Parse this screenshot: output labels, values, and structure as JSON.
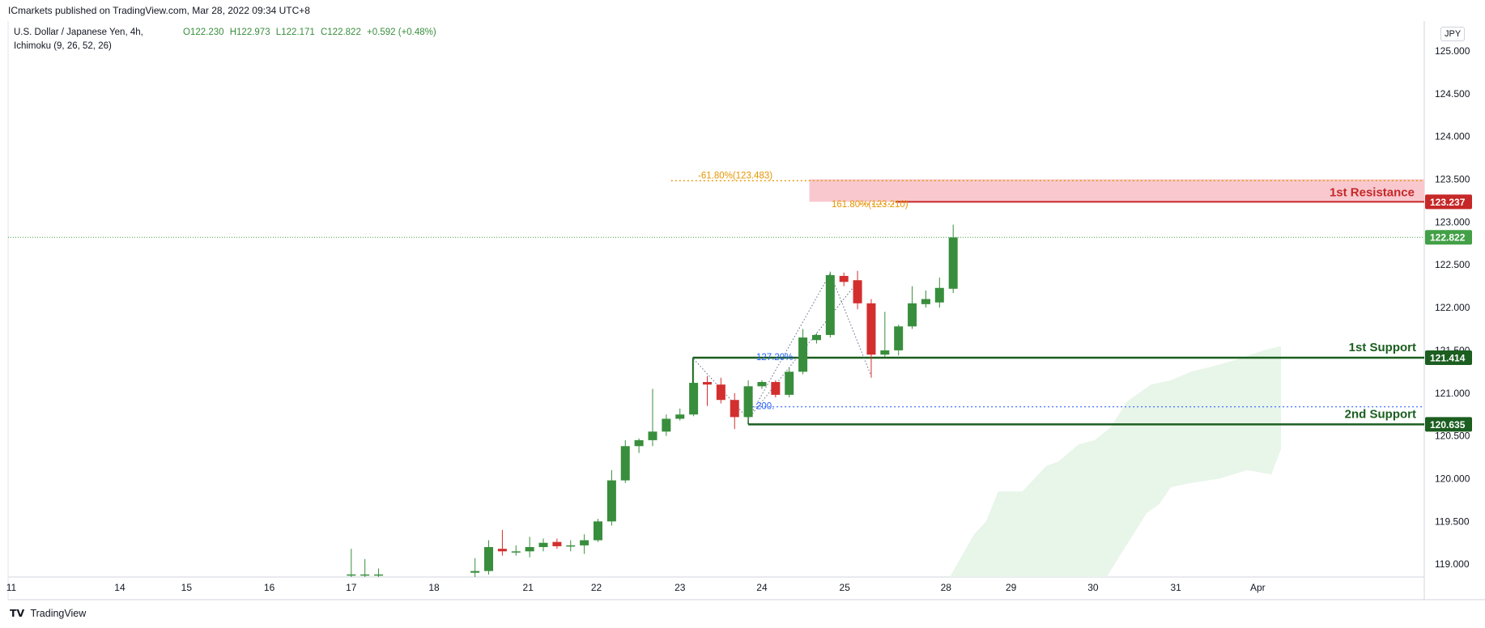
{
  "header": {
    "publisher": "ICmarkets published on TradingView.com, Mar 28, 2022 09:34 UTC+8"
  },
  "legend": {
    "symbol": "U.S. Dollar / Japanese Yen, 4h,",
    "indicator": "Ichimoku (9, 26, 52, 26)",
    "open": "O122.230",
    "high": "H122.973",
    "low": "L122.171",
    "close": "C122.822",
    "change": "+0.592 (+0.48%)"
  },
  "currency_badge": "JPY",
  "footer": {
    "brand": "TradingView"
  },
  "colors": {
    "up": "#388e3c",
    "down": "#d32f2f",
    "support": "#1b5e20",
    "resistance": "#c62828",
    "resistance_zone": "#f9c8cf",
    "cloud": "#e8f5e9",
    "fib_orange": "#e69500",
    "fib_blue": "#2962ff",
    "last_price": "#43a047"
  },
  "chart_data": {
    "type": "candlestick",
    "symbol": "U.S. Dollar / Japanese Yen",
    "timeframe": "4h",
    "ylim": [
      118.85,
      125.35
    ],
    "y_ticks": [
      "119.000",
      "119.500",
      "120.000",
      "120.500",
      "121.000",
      "121.500",
      "122.000",
      "122.500",
      "123.000",
      "123.500",
      "124.000",
      "124.500"
    ],
    "x_ticks": [
      {
        "label": "11",
        "t": 0.2
      },
      {
        "label": "14",
        "t": 13.7
      },
      {
        "label": "15",
        "t": 22.0
      },
      {
        "label": "16",
        "t": 32.3
      },
      {
        "label": "17",
        "t": 42.5
      },
      {
        "label": "18",
        "t": 52.8
      },
      {
        "label": "21",
        "t": 64.5
      },
      {
        "label": "22",
        "t": 73.0
      },
      {
        "label": "23",
        "t": 83.4
      },
      {
        "label": "24",
        "t": 93.6
      },
      {
        "label": "25",
        "t": 103.9
      },
      {
        "label": "28",
        "t": 116.5
      },
      {
        "label": "29",
        "t": 124.6
      },
      {
        "label": "30",
        "t": 134.8
      },
      {
        "label": "31",
        "t": 145.1
      },
      {
        "label": "Apr",
        "t": 155.3
      }
    ],
    "candles": [
      {
        "t": 42.5,
        "o": 118.88,
        "h": 119.18,
        "l": 118.85,
        "c": 118.88
      },
      {
        "t": 44.2,
        "o": 118.88,
        "h": 119.06,
        "l": 118.85,
        "c": 118.88
      },
      {
        "t": 45.9,
        "o": 118.88,
        "h": 118.95,
        "l": 118.85,
        "c": 118.88
      },
      {
        "t": 57.9,
        "o": 118.9,
        "h": 119.07,
        "l": 118.85,
        "c": 118.92
      },
      {
        "t": 59.6,
        "o": 118.92,
        "h": 119.28,
        "l": 118.88,
        "c": 119.2
      },
      {
        "t": 61.3,
        "o": 119.18,
        "h": 119.4,
        "l": 119.1,
        "c": 119.15
      },
      {
        "t": 63.0,
        "o": 119.15,
        "h": 119.22,
        "l": 119.1,
        "c": 119.15
      },
      {
        "t": 64.7,
        "o": 119.15,
        "h": 119.32,
        "l": 119.08,
        "c": 119.2
      },
      {
        "t": 66.4,
        "o": 119.2,
        "h": 119.3,
        "l": 119.15,
        "c": 119.25
      },
      {
        "t": 68.1,
        "o": 119.26,
        "h": 119.3,
        "l": 119.18,
        "c": 119.21
      },
      {
        "t": 69.8,
        "o": 119.21,
        "h": 119.28,
        "l": 119.15,
        "c": 119.22
      },
      {
        "t": 71.5,
        "o": 119.22,
        "h": 119.35,
        "l": 119.12,
        "c": 119.28
      },
      {
        "t": 73.2,
        "o": 119.28,
        "h": 119.53,
        "l": 119.26,
        "c": 119.5
      },
      {
        "t": 74.9,
        "o": 119.5,
        "h": 120.1,
        "l": 119.45,
        "c": 119.98
      },
      {
        "t": 76.6,
        "o": 119.98,
        "h": 120.45,
        "l": 119.95,
        "c": 120.38
      },
      {
        "t": 78.3,
        "o": 120.38,
        "h": 120.47,
        "l": 120.3,
        "c": 120.45
      },
      {
        "t": 80.0,
        "o": 120.45,
        "h": 121.05,
        "l": 120.38,
        "c": 120.55
      },
      {
        "t": 81.7,
        "o": 120.55,
        "h": 120.75,
        "l": 120.5,
        "c": 120.7
      },
      {
        "t": 83.4,
        "o": 120.7,
        "h": 120.82,
        "l": 120.68,
        "c": 120.75
      },
      {
        "t": 85.1,
        "o": 120.75,
        "h": 121.4,
        "l": 120.73,
        "c": 121.12
      },
      {
        "t": 86.8,
        "o": 121.13,
        "h": 121.2,
        "l": 120.85,
        "c": 121.1
      },
      {
        "t": 88.5,
        "o": 121.1,
        "h": 121.18,
        "l": 120.88,
        "c": 120.92
      },
      {
        "t": 90.2,
        "o": 120.92,
        "h": 121.0,
        "l": 120.58,
        "c": 120.72
      },
      {
        "t": 91.9,
        "o": 120.72,
        "h": 121.15,
        "l": 120.68,
        "c": 121.08
      },
      {
        "t": 93.6,
        "o": 121.08,
        "h": 121.15,
        "l": 121.05,
        "c": 121.13
      },
      {
        "t": 95.3,
        "o": 121.13,
        "h": 121.15,
        "l": 120.95,
        "c": 120.98
      },
      {
        "t": 97.0,
        "o": 120.98,
        "h": 121.3,
        "l": 120.95,
        "c": 121.25
      },
      {
        "t": 98.7,
        "o": 121.25,
        "h": 121.75,
        "l": 121.22,
        "c": 121.65
      },
      {
        "t": 100.4,
        "o": 121.62,
        "h": 121.7,
        "l": 121.58,
        "c": 121.68
      },
      {
        "t": 102.1,
        "o": 121.68,
        "h": 122.42,
        "l": 121.65,
        "c": 122.38
      },
      {
        "t": 103.8,
        "o": 122.37,
        "h": 122.41,
        "l": 122.25,
        "c": 122.3
      },
      {
        "t": 105.5,
        "o": 122.32,
        "h": 122.43,
        "l": 121.98,
        "c": 122.05
      },
      {
        "t": 107.2,
        "o": 122.05,
        "h": 122.1,
        "l": 121.18,
        "c": 121.45
      },
      {
        "t": 108.9,
        "o": 121.45,
        "h": 121.95,
        "l": 121.42,
        "c": 121.5
      },
      {
        "t": 110.6,
        "o": 121.5,
        "h": 121.8,
        "l": 121.44,
        "c": 121.78
      },
      {
        "t": 112.3,
        "o": 121.78,
        "h": 122.25,
        "l": 121.75,
        "c": 122.05
      },
      {
        "t": 114.0,
        "o": 122.04,
        "h": 122.2,
        "l": 122.0,
        "c": 122.1
      },
      {
        "t": 115.7,
        "o": 122.06,
        "h": 122.35,
        "l": 122.0,
        "c": 122.23
      },
      {
        "t": 117.4,
        "o": 122.22,
        "h": 122.97,
        "l": 122.17,
        "c": 122.82
      }
    ],
    "cloud_upper": [
      {
        "t": 117.0,
        "v": 118.85
      },
      {
        "t": 118.5,
        "v": 119.1
      },
      {
        "t": 120.0,
        "v": 119.35
      },
      {
        "t": 121.5,
        "v": 119.5
      },
      {
        "t": 123.0,
        "v": 119.85
      },
      {
        "t": 126.0,
        "v": 119.85
      },
      {
        "t": 127.5,
        "v": 120.0
      },
      {
        "t": 129.0,
        "v": 120.15
      },
      {
        "t": 130.5,
        "v": 120.2
      },
      {
        "t": 133.0,
        "v": 120.4
      },
      {
        "t": 135.0,
        "v": 120.45
      },
      {
        "t": 137.0,
        "v": 120.6
      },
      {
        "t": 139.0,
        "v": 120.9
      },
      {
        "t": 140.5,
        "v": 121.0
      },
      {
        "t": 142.0,
        "v": 121.1
      },
      {
        "t": 144.5,
        "v": 121.15
      },
      {
        "t": 147.0,
        "v": 121.25
      },
      {
        "t": 150.0,
        "v": 121.32
      },
      {
        "t": 153.0,
        "v": 121.4
      },
      {
        "t": 156.0,
        "v": 121.5
      },
      {
        "t": 158.2,
        "v": 121.55
      }
    ],
    "cloud_lower": [
      {
        "t": 158.2,
        "v": 120.35
      },
      {
        "t": 157.0,
        "v": 120.05
      },
      {
        "t": 154.0,
        "v": 120.1
      },
      {
        "t": 150.5,
        "v": 120.0
      },
      {
        "t": 147.0,
        "v": 119.95
      },
      {
        "t": 144.5,
        "v": 119.9
      },
      {
        "t": 143.0,
        "v": 119.7
      },
      {
        "t": 141.5,
        "v": 119.6
      },
      {
        "t": 139.5,
        "v": 119.3
      },
      {
        "t": 137.8,
        "v": 119.05
      },
      {
        "t": 136.5,
        "v": 118.85
      }
    ],
    "levels": {
      "resistance_1": {
        "label": "1st Resistance",
        "price": 123.237,
        "badge": "123.237",
        "zone": [
          123.237,
          123.5
        ],
        "start_t": 99.5
      },
      "support_1": {
        "label": "1st Support",
        "price": 121.414,
        "badge": "121.414",
        "start_t": 85.0
      },
      "support_2": {
        "label": "2nd Support",
        "price": 120.635,
        "badge": "120.635",
        "start_t": 91.9
      },
      "last_price": {
        "price": 122.822,
        "badge": "122.822"
      }
    },
    "fib_labels": [
      {
        "text": "-61.80%(123.483)",
        "price": 123.483,
        "color": "orange"
      },
      {
        "text": "161.80%(123.210)",
        "price": 123.21,
        "color": "orange"
      },
      {
        "text": "127.20%",
        "price": 121.414,
        "color": "blue"
      },
      {
        "text": "200.",
        "price": 120.84,
        "color": "blue"
      }
    ]
  }
}
